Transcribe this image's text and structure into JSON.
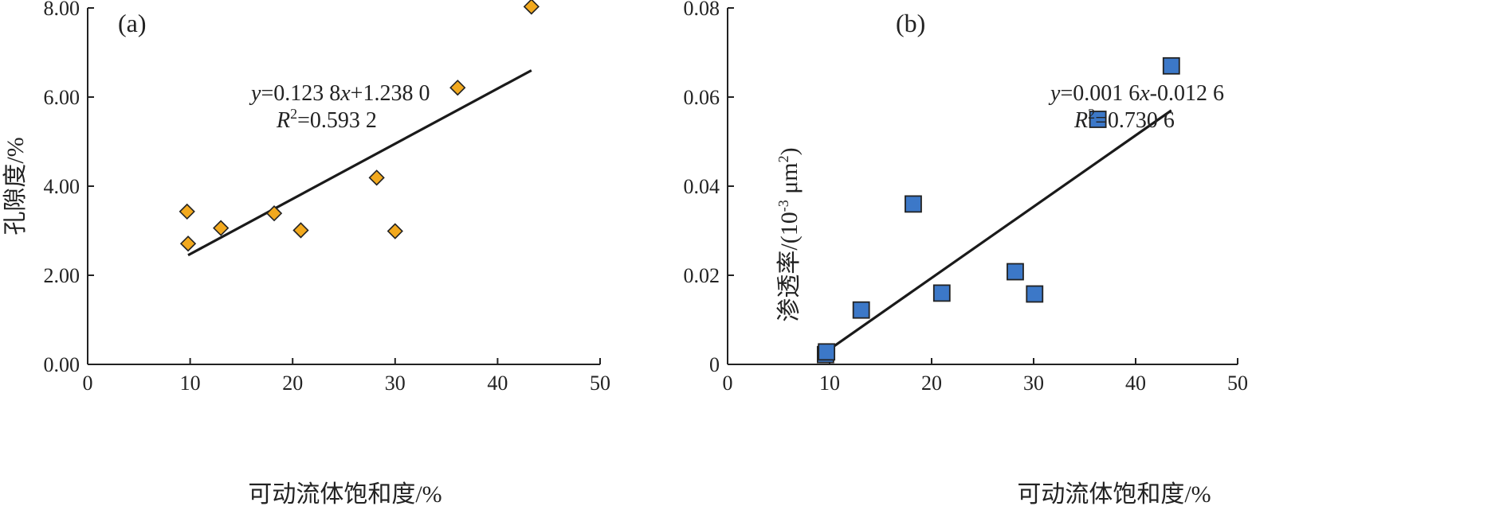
{
  "chart_data": [
    {
      "type": "scatter",
      "panel_label": "(a)",
      "xlabel": "可动流体饱和度/%",
      "ylabel": "孔隙度/%",
      "xlim": [
        0,
        50
      ],
      "ylim": [
        0,
        8
      ],
      "x_ticks": [
        "0",
        "10",
        "20",
        "30",
        "40",
        "50"
      ],
      "y_ticks": [
        "0.00",
        "2.00",
        "4.00",
        "6.00",
        "8.00"
      ],
      "marker": "diamond",
      "marker_color": "#F2A91E",
      "series": [
        {
          "x": [
            9.7,
            9.8,
            13.0,
            18.2,
            20.8,
            28.2,
            30.0,
            36.1,
            43.3
          ],
          "y": [
            3.43,
            2.71,
            3.06,
            3.39,
            3.01,
            4.19,
            2.99,
            6.21,
            8.03
          ]
        }
      ],
      "fit": {
        "x_start": 9.8,
        "x_end": 43.3,
        "slope": 0.1238,
        "intercept": 1.238
      },
      "equation": {
        "y_var": "y",
        "eq_text": "=0.123 8",
        "x_var": "x",
        "eq_tail": "+1.238 0",
        "r_var": "R",
        "r_sup": "2",
        "r_text": "=0.593 2"
      }
    },
    {
      "type": "scatter",
      "panel_label": "(b)",
      "xlabel": "可动流体饱和度/%",
      "ylabel_main": "渗透率/(10",
      "ylabel_sup1": "-3",
      "ylabel_mid": " μm",
      "ylabel_sup2": "2",
      "ylabel_end": ")",
      "xlim": [
        0,
        50
      ],
      "ylim": [
        0,
        0.08
      ],
      "x_ticks": [
        "0",
        "10",
        "20",
        "30",
        "40",
        "50"
      ],
      "y_ticks": [
        "0",
        "0.02",
        "0.04",
        "0.06",
        "0.08"
      ],
      "marker": "square",
      "marker_color": "#3C78C8",
      "series": [
        {
          "x": [
            9.6,
            9.7,
            13.1,
            18.2,
            21.0,
            28.2,
            30.1,
            36.3,
            43.5
          ],
          "y": [
            0.0022,
            0.0028,
            0.0122,
            0.036,
            0.016,
            0.0208,
            0.0158,
            0.055,
            0.067
          ]
        }
      ],
      "fit": {
        "x_start": 9.7,
        "x_end": 43.5,
        "slope": 0.0016,
        "intercept": -0.0126
      },
      "equation": {
        "y_var": "y",
        "eq_text": "=0.001 6",
        "x_var": "x",
        "eq_tail": "-0.012 6",
        "r_var": "R",
        "r_sup": "2",
        "r_text": "=0.730 6"
      }
    }
  ]
}
